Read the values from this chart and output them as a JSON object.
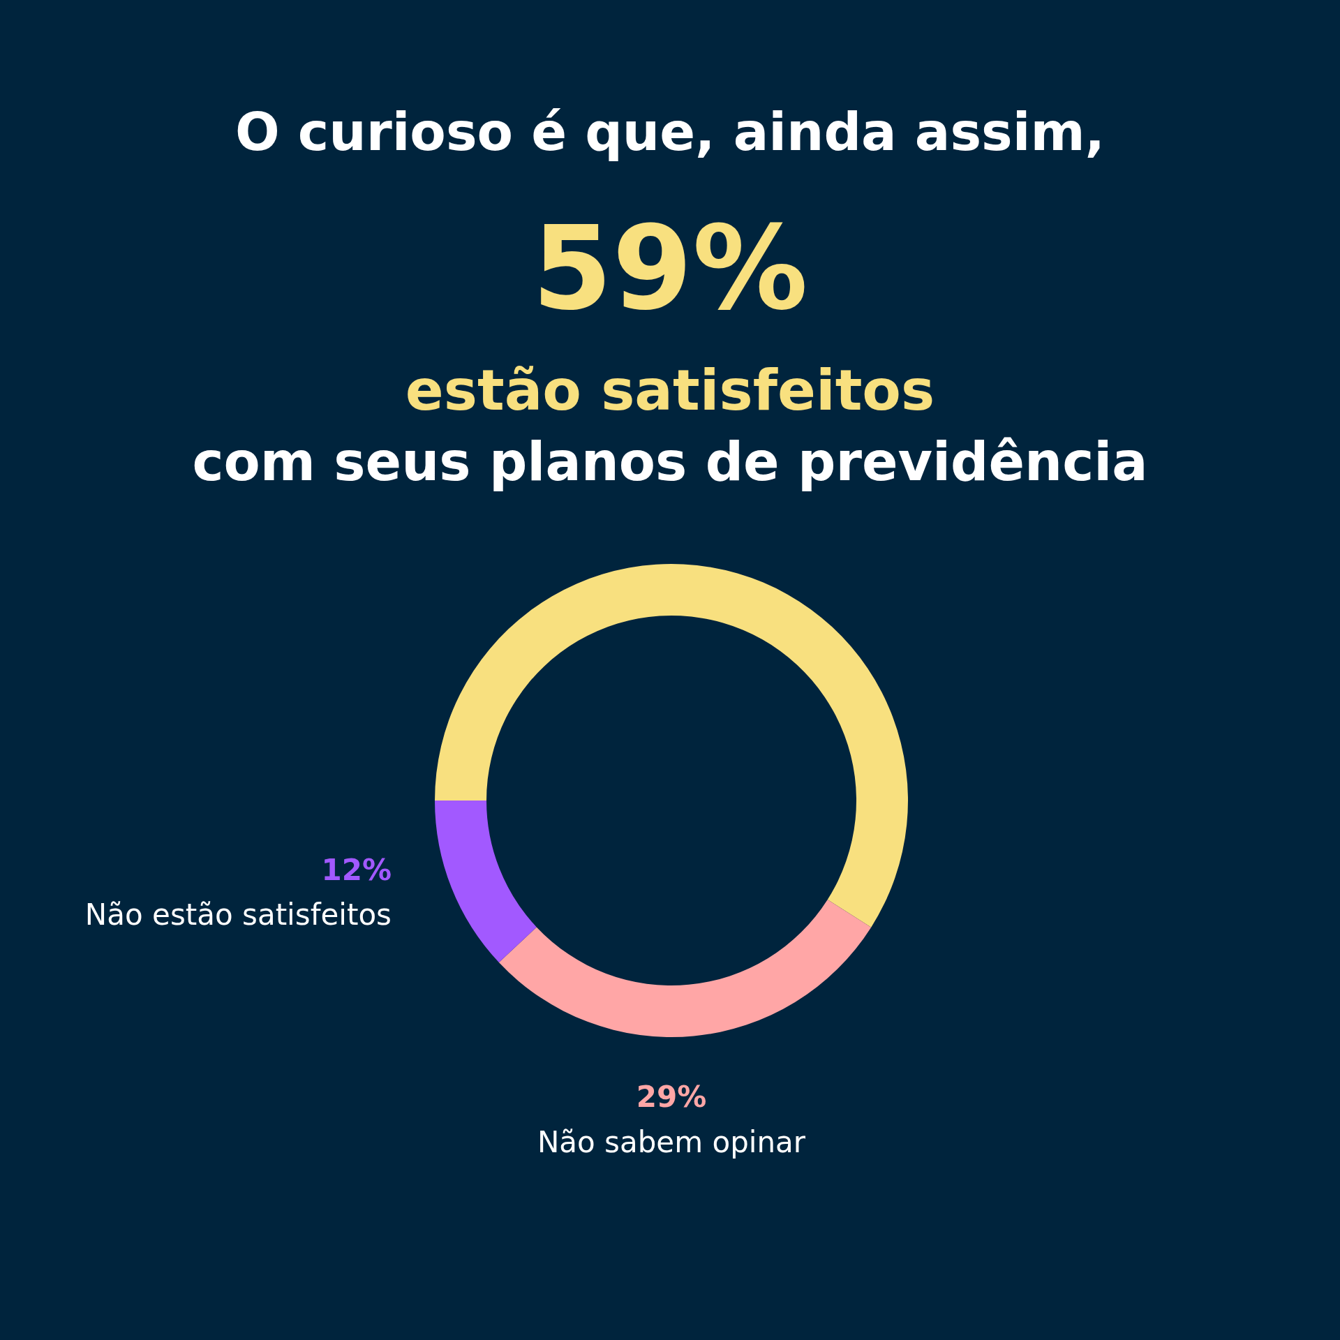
{
  "chart_data": {
    "type": "donut",
    "title": "O curioso é que, ainda assim,",
    "subtitle": "com seus planos de previdência",
    "categories": [
      "estão satisfeitos",
      "Não sabem opinar",
      "Não estão satisfeitos"
    ],
    "values": [
      59,
      29,
      12
    ],
    "colors": [
      "#f8e07f",
      "#ffa6a6",
      "#a259ff"
    ],
    "value_labels": [
      "59%",
      "29%",
      "12%"
    ]
  }
}
